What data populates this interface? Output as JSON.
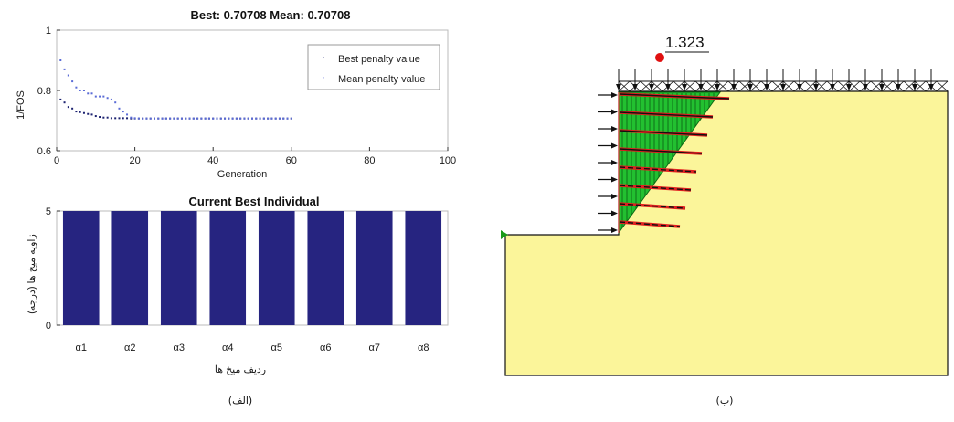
{
  "chart_data": [
    {
      "type": "line",
      "title": "Best: 0.70708 Mean: 0.70708",
      "xlabel": "Generation",
      "ylabel": "1/FOS",
      "xlim": [
        0,
        100
      ],
      "ylim": [
        0.6,
        1.0
      ],
      "x_ticks": [
        "0",
        "20",
        "40",
        "60",
        "80",
        "100"
      ],
      "y_ticks": [
        "0.6",
        "0.8",
        "1"
      ],
      "legend_position": "top-right",
      "series": [
        {
          "name": "Best penalty value",
          "color": "#1c2270",
          "x": [
            1,
            2,
            3,
            4,
            5,
            6,
            7,
            8,
            9,
            10,
            11,
            12,
            13,
            14,
            15,
            16,
            17,
            18,
            19,
            20,
            21,
            22,
            23,
            24,
            25,
            26,
            27,
            28,
            29,
            30,
            31,
            32,
            33,
            34,
            35,
            36,
            37,
            38,
            39,
            40,
            41,
            42,
            43,
            44,
            45,
            46,
            47,
            48,
            49,
            50,
            51,
            52,
            53,
            54,
            55,
            56,
            57,
            58,
            59,
            60
          ],
          "values": [
            0.77,
            0.76,
            0.745,
            0.74,
            0.73,
            0.728,
            0.725,
            0.722,
            0.72,
            0.715,
            0.712,
            0.71,
            0.71,
            0.708,
            0.708,
            0.708,
            0.708,
            0.708,
            0.707,
            0.707,
            0.707,
            0.707,
            0.707,
            0.707,
            0.707,
            0.707,
            0.707,
            0.707,
            0.707,
            0.707,
            0.707,
            0.707,
            0.707,
            0.707,
            0.707,
            0.707,
            0.707,
            0.707,
            0.707,
            0.707,
            0.707,
            0.707,
            0.707,
            0.707,
            0.707,
            0.707,
            0.707,
            0.707,
            0.707,
            0.707,
            0.707,
            0.707,
            0.707,
            0.707,
            0.707,
            0.707,
            0.707,
            0.707,
            0.707,
            0.707
          ]
        },
        {
          "name": "Mean penalty value",
          "color": "#5a6bd6",
          "x": [
            1,
            2,
            3,
            4,
            5,
            6,
            7,
            8,
            9,
            10,
            11,
            12,
            13,
            14,
            15,
            16,
            17,
            18,
            19,
            20,
            21,
            22,
            23,
            24,
            25,
            26,
            27,
            28,
            29,
            30,
            31,
            32,
            33,
            34,
            35,
            36,
            37,
            38,
            39,
            40,
            41,
            42,
            43,
            44,
            45,
            46,
            47,
            48,
            49,
            50,
            51,
            52,
            53,
            54,
            55,
            56,
            57,
            58,
            59,
            60
          ],
          "values": [
            0.9,
            0.87,
            0.85,
            0.83,
            0.81,
            0.8,
            0.8,
            0.79,
            0.79,
            0.78,
            0.78,
            0.78,
            0.775,
            0.77,
            0.76,
            0.74,
            0.73,
            0.72,
            0.71,
            0.708,
            0.707,
            0.707,
            0.707,
            0.707,
            0.707,
            0.707,
            0.707,
            0.707,
            0.707,
            0.707,
            0.707,
            0.707,
            0.707,
            0.707,
            0.707,
            0.707,
            0.707,
            0.707,
            0.707,
            0.707,
            0.707,
            0.707,
            0.707,
            0.707,
            0.707,
            0.707,
            0.707,
            0.707,
            0.707,
            0.707,
            0.707,
            0.707,
            0.707,
            0.707,
            0.707,
            0.707,
            0.707,
            0.707,
            0.707,
            0.707
          ]
        }
      ]
    },
    {
      "type": "bar",
      "title": "Current Best Individual",
      "xlabel": "ردیف میخ ها",
      "ylabel": "زاویه میخ ها (درجه)",
      "categories": [
        "α1",
        "α2",
        "α3",
        "α4",
        "α5",
        "α6",
        "α7",
        "α8"
      ],
      "values": [
        5,
        5,
        5,
        5,
        5,
        5,
        5,
        5
      ],
      "ylim": [
        0,
        5
      ],
      "y_ticks": [
        "0",
        "5"
      ],
      "color": "#262480"
    }
  ],
  "slope_model": {
    "factor_of_safety": "1.323",
    "nail_count": 8,
    "soil_color": "#fbf59a",
    "wedge_color": "#22c030",
    "nail_color": "#e02020",
    "marker_color": "#e01010"
  },
  "captions": {
    "left": "(الف)",
    "right": "(ب)"
  }
}
